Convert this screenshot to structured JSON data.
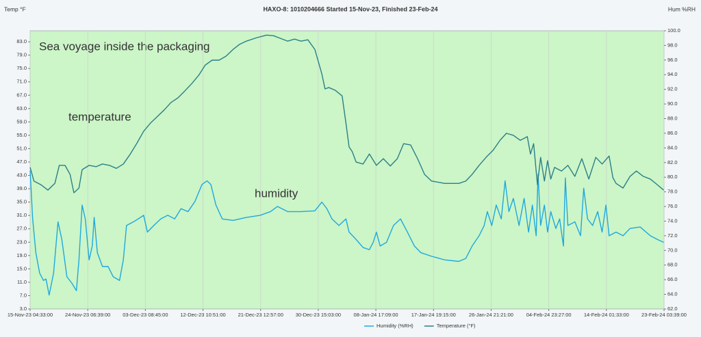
{
  "chart_data": {
    "type": "line",
    "title": "HAXO-8: 1010204666 Started 15-Nov-23, Finished 23-Feb-24",
    "ylabel": "Temp °F",
    "y2label": "Hum %RH",
    "annotations": [
      "Sea voyage inside the packaging",
      "temperature",
      "humidity"
    ],
    "xlim": [
      0,
      99.9625
    ],
    "xticks": [
      {
        "value": 0,
        "label": "15-Nov-23 04:33:00"
      },
      {
        "value": 9.0875,
        "label": "24-Nov-23 06:39:00"
      },
      {
        "value": 18.175,
        "label": "03-Dec-23 08:45:00"
      },
      {
        "value": 27.2625,
        "label": "12-Dec-23 10:51:00"
      },
      {
        "value": 36.35,
        "label": "21-Dec-23 12:57:00"
      },
      {
        "value": 45.4375,
        "label": "30-Dec-23 15:03:00"
      },
      {
        "value": 54.525,
        "label": "08-Jan-24 17:09:00"
      },
      {
        "value": 63.6125,
        "label": "17-Jan-24 19:15:00"
      },
      {
        "value": 72.7,
        "label": "26-Jan-24 21:21:00"
      },
      {
        "value": 81.7875,
        "label": "04-Feb-24 23:27:00"
      },
      {
        "value": 90.875,
        "label": "14-Feb-24 01:33:00"
      },
      {
        "value": 99.9625,
        "label": "23-Feb-24 03:39:00"
      }
    ],
    "ylim": [
      3,
      86.3
    ],
    "yticks": [
      {
        "value": 3,
        "label": "3.0"
      },
      {
        "value": 7,
        "label": "7.0"
      },
      {
        "value": 11,
        "label": "11.0"
      },
      {
        "value": 15,
        "label": "15.0"
      },
      {
        "value": 19,
        "label": "19.0"
      },
      {
        "value": 23,
        "label": "23.0"
      },
      {
        "value": 27,
        "label": "27.0"
      },
      {
        "value": 31,
        "label": "31.0"
      },
      {
        "value": 35,
        "label": "35.0"
      },
      {
        "value": 39,
        "label": "39.0"
      },
      {
        "value": 43,
        "label": "43.0"
      },
      {
        "value": 47,
        "label": "47.0"
      },
      {
        "value": 51,
        "label": "51.0"
      },
      {
        "value": 55,
        "label": "55.0"
      },
      {
        "value": 59,
        "label": "59.0"
      },
      {
        "value": 63,
        "label": "63.0"
      },
      {
        "value": 67,
        "label": "67.0"
      },
      {
        "value": 71,
        "label": "71.0"
      },
      {
        "value": 75,
        "label": "75.0"
      },
      {
        "value": 79,
        "label": "79.0"
      },
      {
        "value": 83,
        "label": "83.0"
      }
    ],
    "y2lim": [
      62,
      100
    ],
    "y2ticks": [
      {
        "value": 62,
        "label": "62.0"
      },
      {
        "value": 64,
        "label": "64.0"
      },
      {
        "value": 66,
        "label": "66.0"
      },
      {
        "value": 68,
        "label": "68.0"
      },
      {
        "value": 70,
        "label": "70.0"
      },
      {
        "value": 72,
        "label": "72.0"
      },
      {
        "value": 74,
        "label": "74.0"
      },
      {
        "value": 76,
        "label": "76.0"
      },
      {
        "value": 78,
        "label": "78.0"
      },
      {
        "value": 80,
        "label": "80.0"
      },
      {
        "value": 82,
        "label": "82.0"
      },
      {
        "value": 84,
        "label": "84.0"
      },
      {
        "value": 86,
        "label": "86.0"
      },
      {
        "value": 88,
        "label": "88.0"
      },
      {
        "value": 90,
        "label": "90.0"
      },
      {
        "value": 92,
        "label": "92.0"
      },
      {
        "value": 94,
        "label": "94.0"
      },
      {
        "value": 96,
        "label": "96.0"
      },
      {
        "value": 98,
        "label": "98.0"
      },
      {
        "value": 100,
        "label": "100.0"
      }
    ],
    "xgrid": true,
    "series": [
      {
        "name": "Humidity (%RH)",
        "color": "#1ea8dc",
        "axis": "y2",
        "x": [
          0,
          0.4,
          0.9,
          1.5,
          2.1,
          2.5,
          3.0,
          3.7,
          4.4,
          5.0,
          5.8,
          6.6,
          7.3,
          7.7,
          8.2,
          8.7,
          9.3,
          9.8,
          10.1,
          10.6,
          11.4,
          12.3,
          13.1,
          14.1,
          14.7,
          15.2,
          16.3,
          17.4,
          17.9,
          18.5,
          19.5,
          20.6,
          21.7,
          22.8,
          23.8,
          24.9,
          26.0,
          27.1,
          27.9,
          28.5,
          29.3,
          30.3,
          32.0,
          34.1,
          36.3,
          37.9,
          39.0,
          40.6,
          42.7,
          44.9,
          46.0,
          46.8,
          47.6,
          48.7,
          49.8,
          50.3,
          51.4,
          52.5,
          53.5,
          54.1,
          54.6,
          55.2,
          56.2,
          57.3,
          58.4,
          59.5,
          60.6,
          61.6,
          63.3,
          65.4,
          67.6,
          68.7,
          69.7,
          70.8,
          71.6,
          72.1,
          72.8,
          73.5,
          74.3,
          74.9,
          75.5,
          76.2,
          77.1,
          77.9,
          78.6,
          79.2,
          79.8,
          80.1,
          80.5,
          81.1,
          81.6,
          82.1,
          82.9,
          83.5,
          84.1,
          84.4,
          84.8,
          85.9,
          86.8,
          87.3,
          87.9,
          88.7,
          89.5,
          90.2,
          90.8,
          91.3,
          92.4,
          93.5,
          94.6,
          96.2,
          97.8,
          98.9,
          99.9
        ],
        "values": [
          80.9,
          74.3,
          69.7,
          66.9,
          65.9,
          66.1,
          63.9,
          66.9,
          73.9,
          71.5,
          66.4,
          65.5,
          64.5,
          68.7,
          76.2,
          74.3,
          68.7,
          70.6,
          74.5,
          69.7,
          67.8,
          67.8,
          66.4,
          65.9,
          68.7,
          73.4,
          73.9,
          74.5,
          74.8,
          72.5,
          73.4,
          74.3,
          74.8,
          74.3,
          75.7,
          75.3,
          76.7,
          79.0,
          79.5,
          79.0,
          76.2,
          74.3,
          74.1,
          74.5,
          74.8,
          75.3,
          76.0,
          75.3,
          75.3,
          75.4,
          76.6,
          75.7,
          74.3,
          73.4,
          74.3,
          72.5,
          71.5,
          70.4,
          70.1,
          71.1,
          72.5,
          70.6,
          71.1,
          73.4,
          74.3,
          72.5,
          70.6,
          69.7,
          69.2,
          68.7,
          68.5,
          68.9,
          70.6,
          72.0,
          73.4,
          75.3,
          73.4,
          76.2,
          74.3,
          79.5,
          75.3,
          77.1,
          73.4,
          77.1,
          72.5,
          76.2,
          72.0,
          80.4,
          73.4,
          76.2,
          72.5,
          75.3,
          73.0,
          74.3,
          70.6,
          79.9,
          73.4,
          73.9,
          72.0,
          78.5,
          74.3,
          73.4,
          75.3,
          72.5,
          76.2,
          72.0,
          72.5,
          72.0,
          73.0,
          73.2,
          72.0,
          71.5,
          71.1
        ]
      },
      {
        "name": "Temperature (°F)",
        "color": "#2a7f86",
        "x": [
          0,
          0.6,
          1.7,
          2.8,
          3.9,
          4.6,
          5.5,
          6.3,
          6.9,
          7.7,
          8.2,
          9.3,
          10.4,
          11.4,
          12.5,
          13.6,
          14.7,
          15.8,
          16.8,
          17.9,
          19.0,
          20.1,
          21.2,
          22.2,
          23.3,
          24.4,
          25.5,
          26.6,
          27.6,
          28.7,
          29.8,
          30.9,
          32.0,
          33.0,
          34.1,
          35.7,
          37.3,
          38.4,
          39.5,
          40.6,
          41.7,
          42.7,
          43.8,
          44.9,
          46.0,
          46.5,
          47.1,
          48.1,
          49.2,
          49.8,
          50.3,
          50.8,
          51.4,
          52.5,
          53.5,
          54.6,
          55.7,
          56.8,
          57.9,
          58.9,
          60.0,
          61.1,
          62.2,
          63.3,
          65.4,
          67.6,
          68.7,
          69.7,
          70.8,
          71.9,
          73.0,
          74.1,
          75.1,
          76.2,
          77.3,
          78.4,
          78.9,
          79.4,
          80.0,
          80.5,
          81.1,
          81.6,
          82.1,
          82.7,
          83.8,
          84.8,
          85.9,
          87.0,
          88.1,
          89.2,
          90.2,
          91.3,
          91.9,
          92.4,
          93.5,
          94.6,
          95.6,
          96.7,
          97.8,
          98.9,
          99.9
        ],
        "values": [
          45.4,
          41.3,
          40.2,
          38.6,
          40.6,
          46.0,
          46.0,
          43.3,
          37.8,
          39.2,
          44.7,
          46.0,
          45.6,
          46.4,
          46.0,
          45.1,
          46.4,
          49.4,
          52.5,
          56.2,
          58.7,
          60.7,
          62.7,
          64.8,
          66.2,
          68.3,
          70.5,
          73.0,
          76.0,
          77.5,
          77.5,
          78.7,
          80.7,
          82.2,
          83.2,
          84.2,
          85.0,
          84.8,
          84.0,
          83.2,
          83.8,
          83.2,
          83.6,
          80.7,
          73.4,
          68.9,
          69.3,
          68.5,
          66.8,
          58.7,
          51.5,
          50.1,
          47.0,
          46.4,
          49.4,
          46.0,
          48.0,
          45.8,
          48.0,
          52.5,
          52.1,
          48.0,
          43.3,
          41.3,
          40.6,
          40.6,
          41.3,
          43.3,
          46.0,
          48.4,
          50.5,
          53.5,
          55.6,
          55.0,
          53.5,
          54.6,
          49.4,
          52.5,
          40.2,
          48.4,
          41.3,
          47.4,
          41.9,
          45.4,
          44.3,
          46.0,
          42.7,
          48.0,
          41.9,
          48.4,
          46.4,
          48.8,
          42.3,
          40.6,
          39.2,
          42.7,
          44.3,
          42.7,
          41.9,
          40.2,
          38.6
        ]
      }
    ]
  }
}
